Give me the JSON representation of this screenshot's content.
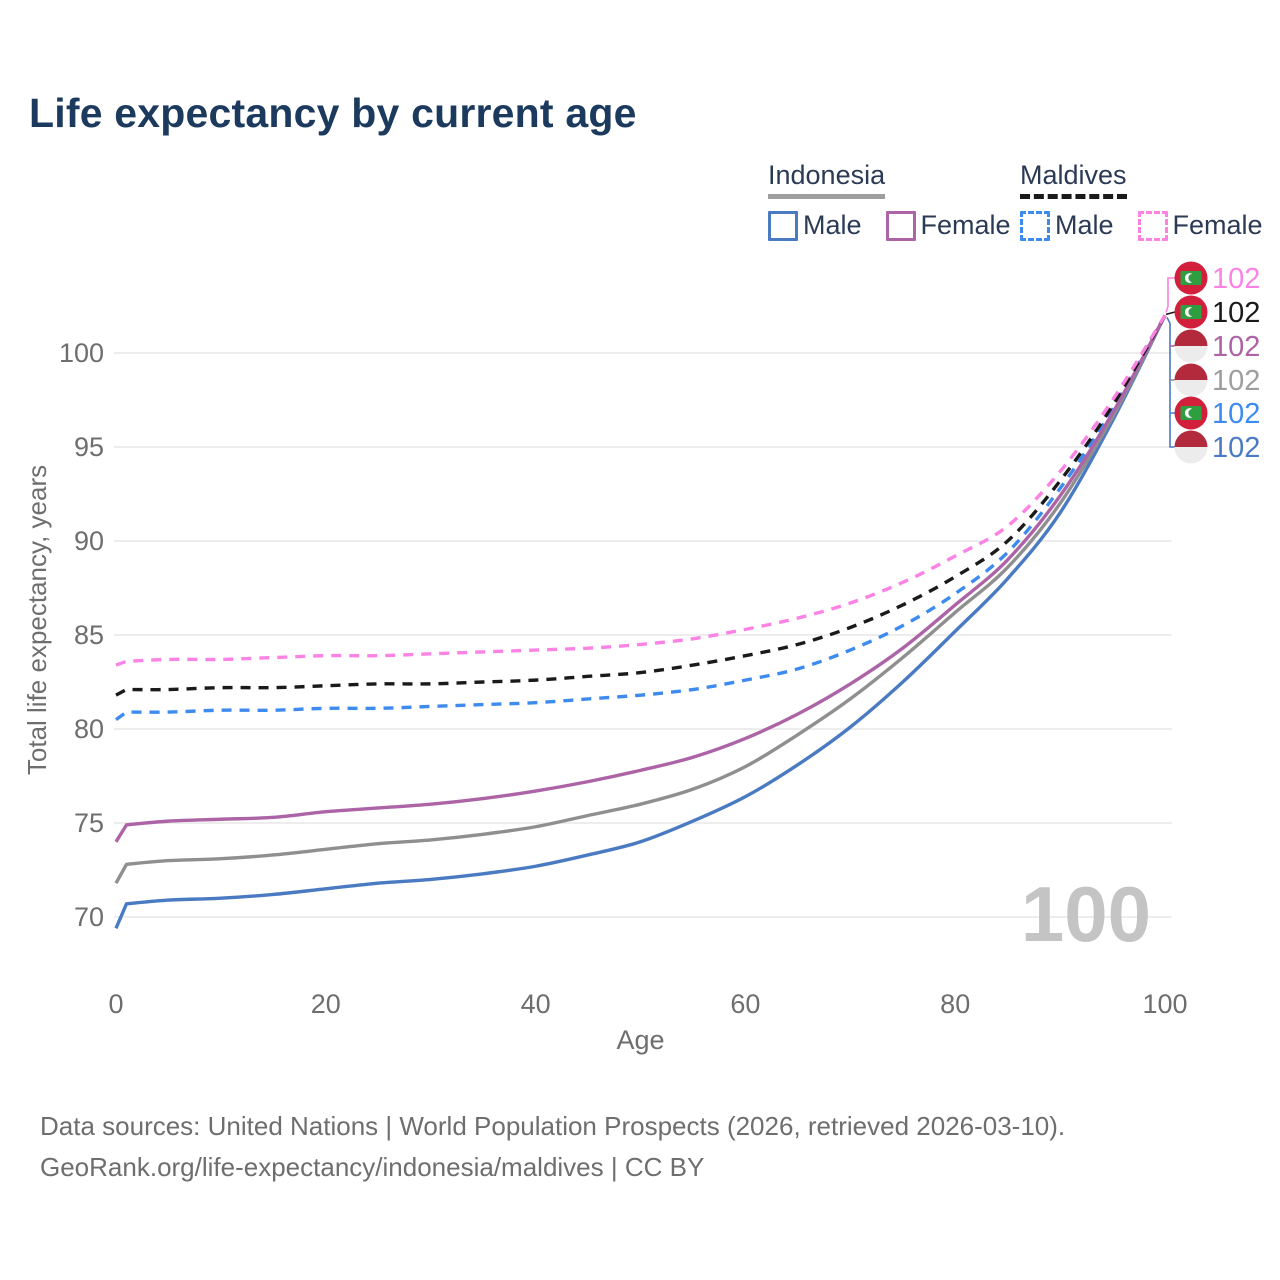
{
  "title": "Life expectancy by current age",
  "colors": {
    "title_text": "#1b3a5e",
    "legend_text": "#2b3a55",
    "axis_text": "#6e6e6e",
    "grid": "#e7e7e7",
    "watermark": "#c4c4c4",
    "indonesia_swatch": "#9e9e9e",
    "maldives_swatch": "#1a1a1a"
  },
  "legend": {
    "groups": [
      {
        "name": "Indonesia",
        "line_style": "solid",
        "underline_color": "#9e9e9e",
        "items": [
          {
            "label": "Male",
            "color": "#4a7ac2"
          },
          {
            "label": "Female",
            "color": "#ad64a6"
          }
        ]
      },
      {
        "name": "Maldives",
        "line_style": "dashed",
        "underline_color": "#1a1a1a",
        "items": [
          {
            "label": "Male",
            "color": "#3e8bef"
          },
          {
            "label": "Female",
            "color": "#fc82e4"
          }
        ]
      }
    ]
  },
  "chart_data": {
    "type": "line",
    "title": "Life expectancy by current age",
    "xlabel": "Age",
    "ylabel": "Total life expectancy, years",
    "xlim": [
      0,
      100
    ],
    "ylim": [
      69,
      103
    ],
    "xticks": [
      0,
      20,
      40,
      60,
      80,
      100
    ],
    "yticks": [
      70,
      75,
      80,
      85,
      90,
      95,
      100
    ],
    "grid": "horizontal",
    "legend_position": "top-right",
    "watermark": "100",
    "x": [
      0,
      1,
      5,
      10,
      15,
      20,
      25,
      30,
      35,
      40,
      45,
      50,
      55,
      60,
      65,
      70,
      75,
      80,
      85,
      90,
      95,
      100
    ],
    "series": [
      {
        "name": "Maldives Female",
        "country": "Maldives",
        "sex": "female",
        "color": "#fc82e4",
        "label_color": "#fc82e4",
        "dash": true,
        "flag": "maldives",
        "end_label": "102",
        "label_row": 0,
        "values": [
          83.4,
          83.6,
          83.7,
          83.7,
          83.8,
          83.9,
          83.9,
          84.0,
          84.1,
          84.2,
          84.3,
          84.5,
          84.8,
          85.3,
          85.9,
          86.7,
          87.8,
          89.2,
          90.8,
          93.7,
          97.5,
          102
        ]
      },
      {
        "name": "Maldives",
        "country": "Maldives",
        "sex": "both",
        "color": "#1a1a1a",
        "label_color": "#1a1a1a",
        "dash": true,
        "flag": "maldives",
        "end_label": "102",
        "label_row": 1,
        "values": [
          81.8,
          82.1,
          82.1,
          82.2,
          82.2,
          82.3,
          82.4,
          82.4,
          82.5,
          82.6,
          82.8,
          83.0,
          83.4,
          83.9,
          84.5,
          85.4,
          86.6,
          88.1,
          90.0,
          93.2,
          97.2,
          102
        ]
      },
      {
        "name": "Indonesia Female",
        "country": "Indonesia",
        "sex": "female",
        "color": "#ad64a6",
        "label_color": "#ad64a6",
        "dash": false,
        "flag": "indonesia",
        "end_label": "102",
        "label_row": 2,
        "values": [
          74.0,
          74.9,
          75.1,
          75.2,
          75.3,
          75.6,
          75.8,
          76.0,
          76.3,
          76.7,
          77.2,
          77.8,
          78.5,
          79.5,
          80.8,
          82.4,
          84.3,
          86.6,
          89.0,
          92.4,
          96.8,
          102
        ]
      },
      {
        "name": "Indonesia",
        "country": "Indonesia",
        "sex": "both",
        "color": "#8f8f8f",
        "label_color": "#9e9e9e",
        "dash": false,
        "flag": "indonesia",
        "end_label": "102",
        "label_row": 3,
        "values": [
          71.8,
          72.8,
          73.0,
          73.1,
          73.3,
          73.6,
          73.9,
          74.1,
          74.4,
          74.8,
          75.4,
          76.0,
          76.8,
          78.0,
          79.7,
          81.6,
          83.8,
          86.2,
          88.6,
          92.0,
          96.6,
          102
        ]
      },
      {
        "name": "Maldives Male",
        "country": "Maldives",
        "sex": "male",
        "color": "#3e8bef",
        "label_color": "#3e8bef",
        "dash": true,
        "flag": "maldives",
        "end_label": "102",
        "label_row": 4,
        "values": [
          80.5,
          80.9,
          80.9,
          81.0,
          81.0,
          81.1,
          81.1,
          81.2,
          81.3,
          81.4,
          81.6,
          81.8,
          82.1,
          82.6,
          83.2,
          84.2,
          85.5,
          87.2,
          89.4,
          92.8,
          97.0,
          102
        ]
      },
      {
        "name": "Indonesia Male",
        "country": "Indonesia",
        "sex": "male",
        "color": "#4a7ac2",
        "label_color": "#4a7ac2",
        "dash": false,
        "flag": "indonesia",
        "end_label": "102",
        "label_row": 5,
        "values": [
          69.4,
          70.7,
          70.9,
          71.0,
          71.2,
          71.5,
          71.8,
          72.0,
          72.3,
          72.7,
          73.3,
          74.0,
          75.1,
          76.4,
          78.1,
          80.1,
          82.5,
          85.2,
          88.0,
          91.5,
          96.4,
          102
        ]
      }
    ]
  },
  "footer": {
    "line1": "Data sources: United Nations | World Population Prospects (2026, retrieved 2026-03-10).",
    "line2": "GeoRank.org/life-expectancy/indonesia/maldives | CC BY"
  }
}
